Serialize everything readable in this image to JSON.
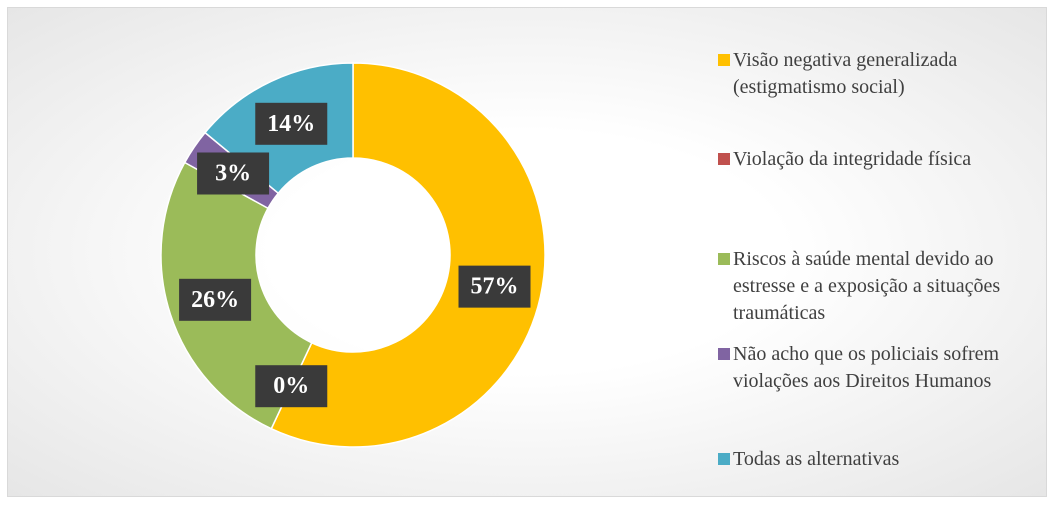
{
  "chart_data": {
    "type": "pie",
    "categories": [
      "Visão negativa generalizada (estigmatismo social)",
      "Violação da integridade física",
      "Riscos à saúde mental devido ao estresse e a exposição a situações traumáticas",
      "Não acho que os policiais sofrem violações aos Direitos Humanos",
      "Todas as alternativas"
    ],
    "values": [
      57,
      0,
      26,
      3,
      14
    ],
    "value_labels": [
      "57%",
      "0%",
      "26%",
      "3%",
      "14%"
    ],
    "colors": [
      "#FFC000",
      "#C0504D",
      "#9BBB59",
      "#8064A2",
      "#4BACC6"
    ],
    "legend": "right"
  }
}
